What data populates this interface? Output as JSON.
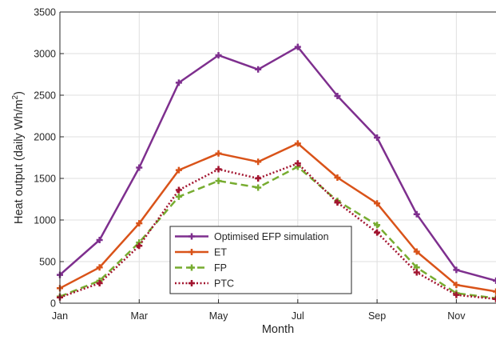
{
  "chart_data": {
    "type": "line",
    "xlabel": "Month",
    "ylabel": "Heat output (daily Wh/m",
    "ylabel_superscript": "2",
    "ylabel_suffix": ")",
    "x_tick_labels": [
      "Jan",
      "Mar",
      "May",
      "Jul",
      "Sep",
      "Nov"
    ],
    "y_tick_labels": [
      "0",
      "500",
      "1000",
      "1500",
      "2000",
      "2500",
      "3000",
      "3500"
    ],
    "xlim": [
      1,
      12
    ],
    "ylim": [
      0,
      3500
    ],
    "grid": true,
    "legend_position": "lower-center",
    "x": [
      1,
      2,
      3,
      4,
      5,
      6,
      7,
      8,
      9,
      10,
      11,
      12
    ],
    "series": [
      {
        "name": "Optimised EFP simulation",
        "color": "#7e2f8e",
        "dash": "solid",
        "values": [
          340,
          760,
          1630,
          2650,
          2980,
          2810,
          3080,
          2490,
          1990,
          1070,
          400,
          270
        ]
      },
      {
        "name": "ET",
        "color": "#d95319",
        "dash": "solid",
        "values": [
          180,
          430,
          960,
          1600,
          1800,
          1700,
          1920,
          1510,
          1200,
          620,
          220,
          140
        ]
      },
      {
        "name": "FP",
        "color": "#77ac30",
        "dash": "dashed",
        "values": [
          80,
          270,
          730,
          1280,
          1470,
          1390,
          1640,
          1230,
          940,
          430,
          120,
          60
        ]
      },
      {
        "name": "PTC",
        "color": "#a2142f",
        "dash": "dotted",
        "values": [
          70,
          240,
          690,
          1360,
          1610,
          1500,
          1680,
          1210,
          850,
          370,
          100,
          50
        ]
      }
    ]
  }
}
